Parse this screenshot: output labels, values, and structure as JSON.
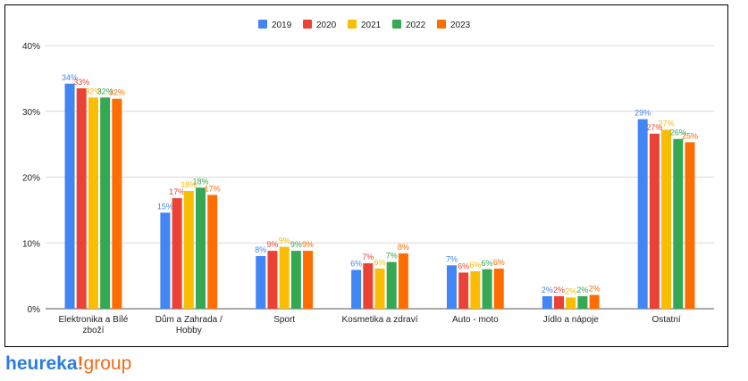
{
  "chart_data": {
    "type": "bar",
    "categories": [
      "Elektronika a Bílé\nzboží",
      "Dům a Zahrada /\nHobby",
      "Sport",
      "Kosmetika a zdraví",
      "Auto - moto",
      "Jídlo a nápoje",
      "Ostatní"
    ],
    "series": [
      {
        "name": "2019",
        "color": "#4285f4",
        "values": [
          34.2,
          14.6,
          8.0,
          5.9,
          6.6,
          1.9,
          28.8
        ],
        "labels": [
          "34%",
          "15%",
          "8%",
          "6%",
          "7%",
          "2%",
          "29%"
        ]
      },
      {
        "name": "2020",
        "color": "#ea4335",
        "values": [
          33.5,
          16.8,
          8.8,
          6.9,
          5.5,
          1.9,
          26.6
        ],
        "labels": [
          "33%",
          "17%",
          "9%",
          "7%",
          "6%",
          "2%",
          "27%"
        ]
      },
      {
        "name": "2021",
        "color": "#fbbc04",
        "values": [
          32.1,
          17.9,
          9.4,
          6.1,
          5.7,
          1.7,
          27.2
        ],
        "labels": [
          "32%",
          "18%",
          "9%",
          "6%",
          "6%",
          "2%",
          "27%"
        ]
      },
      {
        "name": "2022",
        "color": "#34a853",
        "values": [
          32.1,
          18.4,
          8.8,
          7.1,
          6.0,
          1.9,
          25.8
        ],
        "labels": [
          "32%",
          "18%",
          "9%",
          "7%",
          "6%",
          "2%",
          "26%"
        ]
      },
      {
        "name": "2023",
        "color": "#ff6d01",
        "values": [
          31.9,
          17.3,
          8.8,
          8.4,
          6.1,
          2.1,
          25.3
        ],
        "labels": [
          "32%",
          "17%",
          "9%",
          "8%",
          "6%",
          "2%",
          "25%"
        ]
      }
    ],
    "y_ticks": [
      "0%",
      "10%",
      "20%",
      "30%",
      "40%"
    ],
    "ylim": [
      0,
      40
    ],
    "grid": true,
    "legend_position": "top-center"
  },
  "logo": {
    "brand": "heureka",
    "bang": "!",
    "suffix": "group"
  }
}
